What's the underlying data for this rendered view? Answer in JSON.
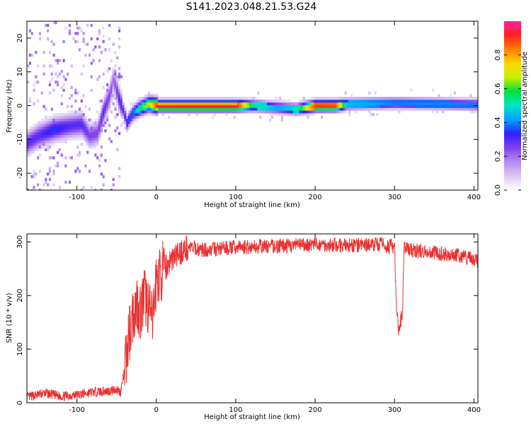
{
  "title": "S141.2023.048.21.53.G24",
  "colors": {
    "snr_line": "#e83030",
    "colormap": [
      "#ffffff",
      "#dcc8f5",
      "#b48cf0",
      "#8040f0",
      "#3020ff",
      "#00a0ff",
      "#00e6c8",
      "#00e040",
      "#c8f000",
      "#ffd700",
      "#ff8000",
      "#ff2020",
      "#ff20a0"
    ]
  },
  "chart_data": [
    {
      "type": "heatmap",
      "xlabel": "Height of straight line (km)",
      "ylabel": "Frequency (Hz)",
      "xlim": [
        -163,
        405
      ],
      "ylim": [
        -25,
        25
      ],
      "xticks": [
        -100,
        0,
        100,
        200,
        300,
        400
      ],
      "xtick_labels": [
        "-100",
        "0",
        "100",
        "200",
        "300",
        "400"
      ],
      "yticks": [
        -20,
        -10,
        0,
        10,
        20
      ],
      "ytick_labels": [
        "-20",
        "-10",
        "0",
        "10",
        "20"
      ],
      "colorbar": {
        "label": "Normalized spectral amplitude",
        "range": [
          0,
          1
        ],
        "ticks": [
          0.0,
          0.2,
          0.4,
          0.6,
          0.8
        ],
        "tick_labels": [
          "0.0",
          "0.2",
          "0.4",
          "0.6",
          "0.8"
        ]
      },
      "ridge": [
        {
          "x": -163,
          "y": -11,
          "amp": 0.3
        },
        {
          "x": -150,
          "y": -9,
          "amp": 0.3
        },
        {
          "x": -130,
          "y": -7,
          "amp": 0.35
        },
        {
          "x": -110,
          "y": -6,
          "amp": 0.3
        },
        {
          "x": -95,
          "y": -5.5,
          "amp": 0.3
        },
        {
          "x": -85,
          "y": -9,
          "amp": 0.25
        },
        {
          "x": -75,
          "y": -8,
          "amp": 0.25
        },
        {
          "x": -68,
          "y": -2,
          "amp": 0.3
        },
        {
          "x": -60,
          "y": 3,
          "amp": 0.25
        },
        {
          "x": -55,
          "y": 8,
          "amp": 0.2
        },
        {
          "x": -48,
          "y": 2,
          "amp": 0.3
        },
        {
          "x": -42,
          "y": -2,
          "amp": 0.3
        },
        {
          "x": -38,
          "y": -5,
          "amp": 0.35
        },
        {
          "x": -30,
          "y": -2,
          "amp": 0.4
        },
        {
          "x": -20,
          "y": -0.5,
          "amp": 0.6
        },
        {
          "x": -10,
          "y": 0.5,
          "amp": 0.7
        },
        {
          "x": 0,
          "y": 0,
          "amp": 0.95
        },
        {
          "x": 100,
          "y": 0,
          "amp": 0.95
        },
        {
          "x": 120,
          "y": 0,
          "amp": 0.55
        },
        {
          "x": 150,
          "y": -0.5,
          "amp": 0.45
        },
        {
          "x": 175,
          "y": -1,
          "amp": 0.5
        },
        {
          "x": 200,
          "y": 0,
          "amp": 0.92
        },
        {
          "x": 225,
          "y": 0,
          "amp": 0.9
        },
        {
          "x": 240,
          "y": 0.5,
          "amp": 0.45
        },
        {
          "x": 300,
          "y": 0.8,
          "amp": 0.4
        },
        {
          "x": 350,
          "y": 0.6,
          "amp": 0.4
        },
        {
          "x": 405,
          "y": 0.3,
          "amp": 0.4
        }
      ]
    },
    {
      "type": "line",
      "xlabel": "Height of straight line (km)",
      "ylabel": "SNR (10 * v/v)",
      "xlim": [
        -163,
        405
      ],
      "ylim": [
        0,
        315
      ],
      "xticks": [
        -100,
        0,
        100,
        200,
        300,
        400
      ],
      "xtick_labels": [
        "-100",
        "0",
        "100",
        "200",
        "300",
        "400"
      ],
      "yticks": [
        0,
        100,
        200,
        300
      ],
      "ytick_labels": [
        "0",
        "100",
        "200",
        "300"
      ],
      "series": [
        {
          "x": [
            -163,
            -150,
            -140,
            -120,
            -100,
            -80,
            -60,
            -50,
            -45,
            -40,
            -35,
            -30,
            -25,
            -20,
            -15,
            -10,
            -5,
            0,
            10,
            20,
            30,
            40,
            60,
            100,
            150,
            200,
            250,
            280,
            300,
            302,
            305,
            310,
            312,
            320,
            350,
            380,
            405
          ],
          "y": [
            10,
            15,
            18,
            12,
            15,
            20,
            22,
            25,
            20,
            60,
            120,
            160,
            190,
            170,
            200,
            180,
            150,
            230,
            250,
            270,
            280,
            290,
            285,
            290,
            292,
            295,
            293,
            296,
            290,
            190,
            130,
            170,
            290,
            285,
            280,
            275,
            265
          ]
        }
      ]
    }
  ]
}
